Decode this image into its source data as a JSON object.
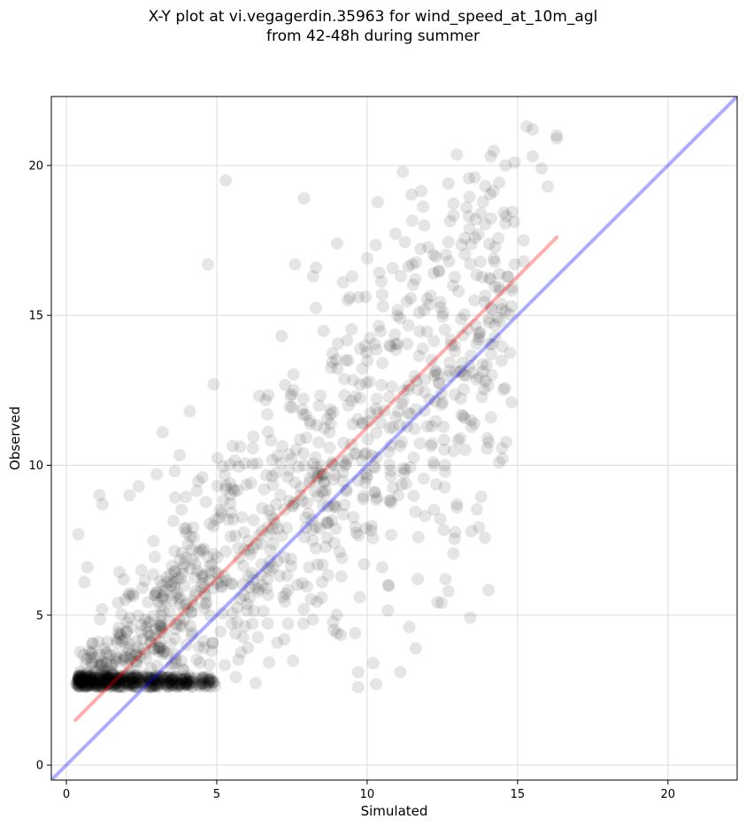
{
  "chart_data": {
    "type": "scatter",
    "title_line1": "X-Y plot at vi.vegagerdin.35963 for wind_speed_at_10m_agl",
    "title_line2": "from 42-48h during summer",
    "xlabel": "Simulated",
    "ylabel": "Observed",
    "xlim": [
      -0.5,
      22.3
    ],
    "ylim": [
      -0.5,
      22.3
    ],
    "xticks": [
      0,
      5,
      10,
      15,
      20
    ],
    "yticks": [
      0,
      5,
      10,
      15,
      20
    ],
    "grid": true,
    "point_color": "#000000",
    "point_alpha": 0.1,
    "lines": [
      {
        "name": "identity",
        "color": "#0000ff",
        "alpha": 0.32,
        "x": [
          -0.5,
          22.3
        ],
        "y": [
          -0.5,
          22.3
        ]
      },
      {
        "name": "fit",
        "color": "#ff0000",
        "alpha": 0.32,
        "x": [
          0.3,
          16.3
        ],
        "y": [
          1.5,
          17.6
        ]
      }
    ],
    "notable_points": [
      [
        0.4,
        7.7
      ],
      [
        0.6,
        6.1
      ],
      [
        0.7,
        6.6
      ],
      [
        1.1,
        9.0
      ],
      [
        1.2,
        8.7
      ],
      [
        2.1,
        9.0
      ],
      [
        2.4,
        9.3
      ],
      [
        3.0,
        9.7
      ],
      [
        3.2,
        11.1
      ],
      [
        3.6,
        9.8
      ],
      [
        4.1,
        11.8
      ],
      [
        4.7,
        16.7
      ],
      [
        4.9,
        12.7
      ],
      [
        5.3,
        19.5
      ],
      [
        7.9,
        18.9
      ],
      [
        7.6,
        16.7
      ],
      [
        8.2,
        16.3
      ],
      [
        8.3,
        16.6
      ],
      [
        9.0,
        17.4
      ],
      [
        9.2,
        16.1
      ],
      [
        9.5,
        16.3
      ],
      [
        10.0,
        16.9
      ],
      [
        10.5,
        15.7
      ],
      [
        11.5,
        16.7
      ],
      [
        11.6,
        16.2
      ],
      [
        11.9,
        18.0
      ],
      [
        12.7,
        19.4
      ],
      [
        13.3,
        18.6
      ],
      [
        13.6,
        18.2
      ],
      [
        13.7,
        17.7
      ],
      [
        14.1,
        16.2
      ],
      [
        14.6,
        20.0
      ],
      [
        14.9,
        20.1
      ],
      [
        15.3,
        21.3
      ],
      [
        15.5,
        21.2
      ],
      [
        15.5,
        20.3
      ],
      [
        15.8,
        19.9
      ],
      [
        16.3,
        20.9
      ],
      [
        16.3,
        21.0
      ],
      [
        16.0,
        19.3
      ],
      [
        15.2,
        17.5
      ],
      [
        14.9,
        16.7
      ],
      [
        15.2,
        16.8
      ],
      [
        14.0,
        10.9
      ],
      [
        13.1,
        10.9
      ],
      [
        14.8,
        12.1
      ],
      [
        12.6,
        6.2
      ],
      [
        12.7,
        5.8
      ],
      [
        11.4,
        4.6
      ],
      [
        11.1,
        3.1
      ],
      [
        10.2,
        3.4
      ],
      [
        9.7,
        3.1
      ],
      [
        9.7,
        2.6
      ],
      [
        10.3,
        2.7
      ],
      [
        9.0,
        4.4
      ],
      [
        9.6,
        4.4
      ],
      [
        10.7,
        6.0
      ],
      [
        10.5,
        6.6
      ],
      [
        9.9,
        6.7
      ],
      [
        8.5,
        6.1
      ],
      [
        11.7,
        7.6
      ],
      [
        12.0,
        11.3
      ],
      [
        12.2,
        10.1
      ],
      [
        11.2,
        9.9
      ],
      [
        12.5,
        12.1
      ],
      [
        13.4,
        13.3
      ]
    ]
  }
}
